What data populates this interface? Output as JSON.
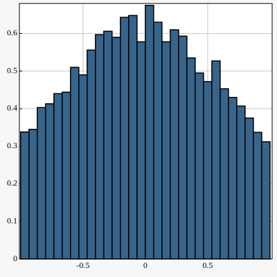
{
  "chart_data": {
    "type": "histogram",
    "bins": [
      -1,
      -0.9333,
      -0.8667,
      -0.8,
      -0.7333,
      -0.6667,
      -0.6,
      -0.5333,
      -0.4667,
      -0.4,
      -0.3333,
      -0.2667,
      -0.2,
      -0.1333,
      -0.0667,
      0,
      0.0667,
      0.1333,
      0.2,
      0.2667,
      0.3333,
      0.4,
      0.4667,
      0.5333,
      0.6,
      0.6667,
      0.7333,
      0.8,
      0.8667,
      0.9333,
      1
    ],
    "values": [
      0.338,
      0.345,
      0.403,
      0.413,
      0.44,
      0.444,
      0.51,
      0.49,
      0.556,
      0.597,
      0.606,
      0.59,
      0.643,
      0.648,
      0.578,
      0.675,
      0.63,
      0.578,
      0.61,
      0.593,
      0.535,
      0.495,
      0.472,
      0.527,
      0.453,
      0.43,
      0.407,
      0.375,
      0.337,
      0.312
    ],
    "color": "#36648b",
    "xlim": [
      -1.01,
      1.017
    ],
    "xticks": [
      -0.5,
      0,
      0.5
    ],
    "ylim": [
      0,
      0.68
    ],
    "yticks": [
      0,
      0.1,
      0.2,
      0.3,
      0.4,
      0.5,
      0.6
    ],
    "grid": true
  }
}
